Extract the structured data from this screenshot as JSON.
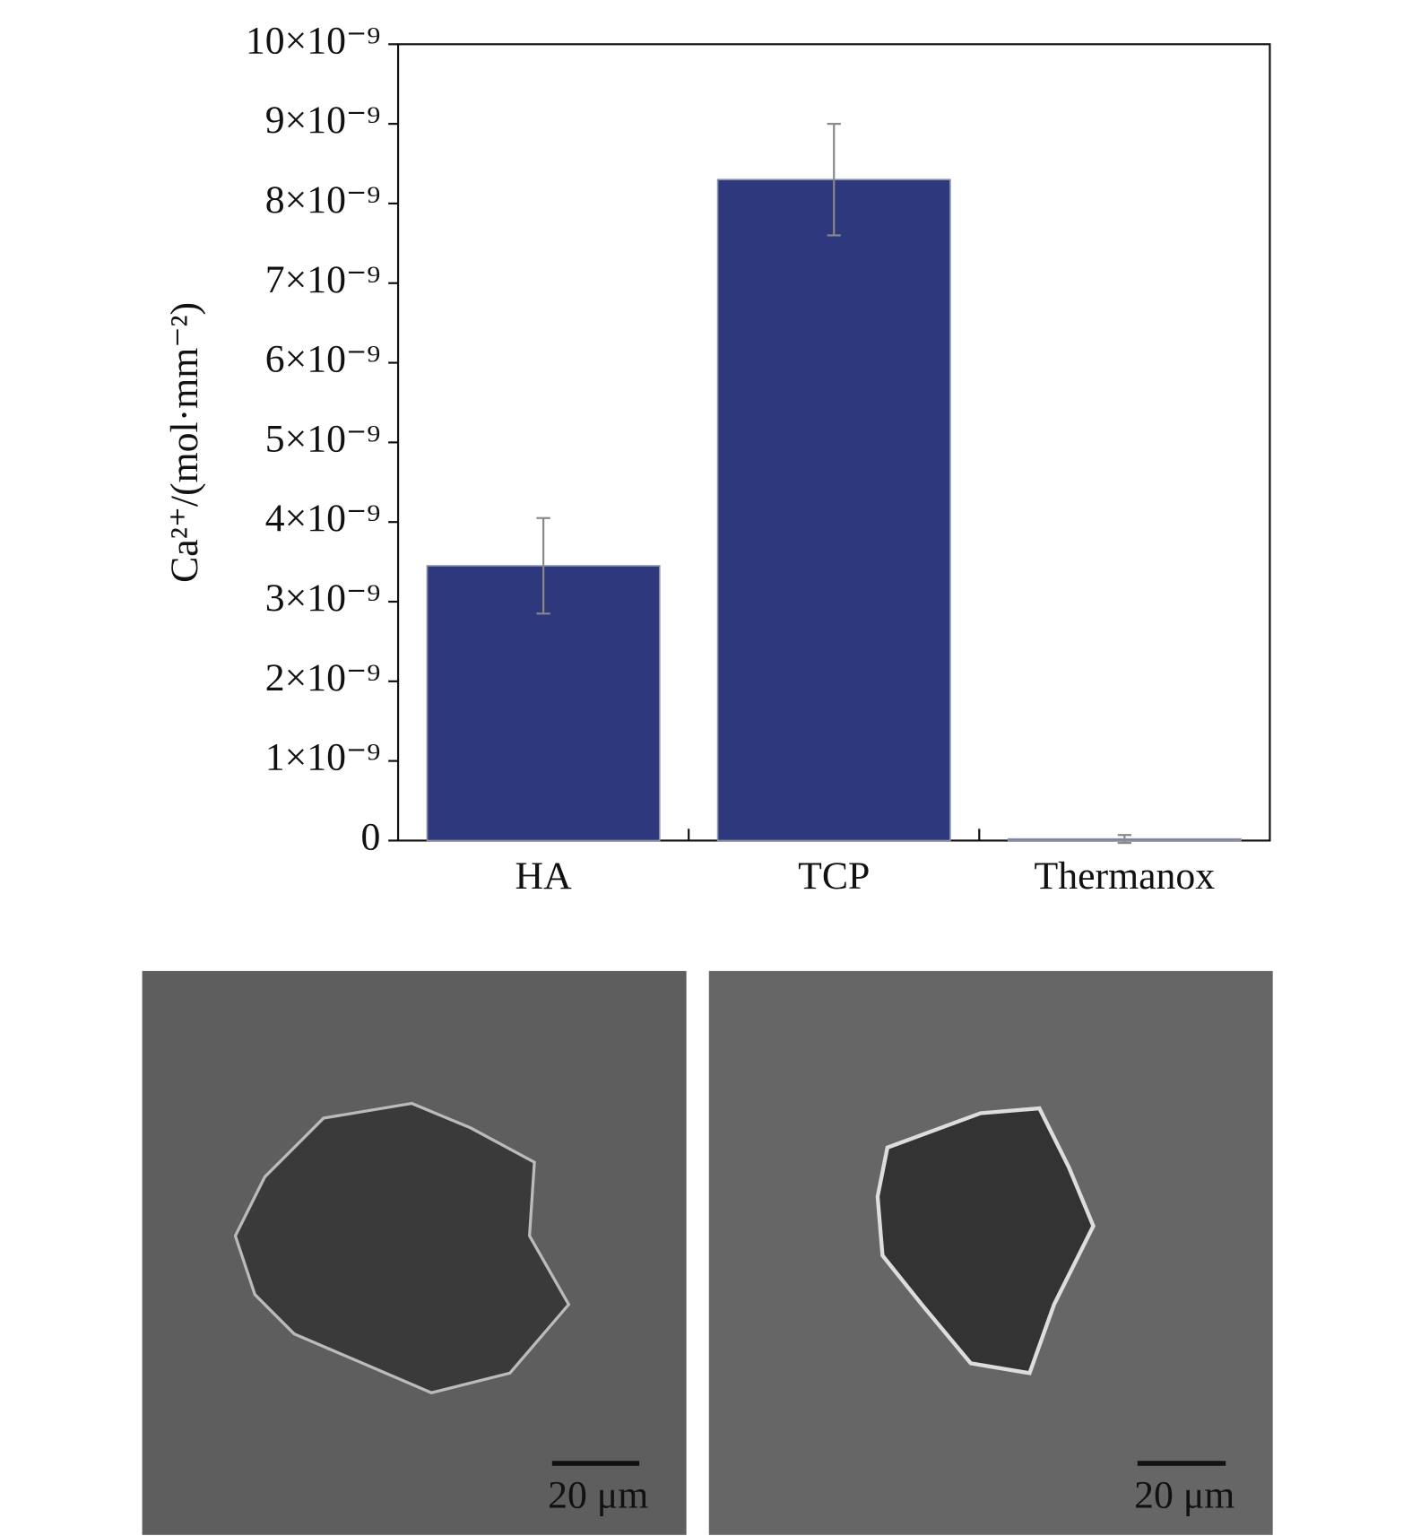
{
  "chart_data": {
    "type": "bar",
    "ylabel": "Ca²⁺/(mol·mm⁻²)",
    "categories": [
      "HA",
      "TCP",
      "Thermanox"
    ],
    "values": [
      3.45e-09,
      8.3e-09,
      2e-11
    ],
    "errors": [
      6e-10,
      7e-10,
      5e-11
    ],
    "color": "#2e387c",
    "ylim": [
      0,
      1e-08
    ],
    "yticks": [
      0,
      {
        "value": 1e-09,
        "label": "1×10⁻⁹"
      },
      {
        "value": 2e-09,
        "label": "2×10⁻⁹"
      },
      {
        "value": 3e-09,
        "label": "3×10⁻⁹"
      },
      {
        "value": 4e-09,
        "label": "4×10⁻⁹"
      },
      {
        "value": 5e-09,
        "label": "5×10⁻⁹"
      },
      {
        "value": 6e-09,
        "label": "6×10⁻⁹"
      },
      {
        "value": 7e-09,
        "label": "7×10⁻⁹"
      },
      {
        "value": 8e-09,
        "label": "8×10⁻⁹"
      },
      {
        "value": 9e-09,
        "label": "9×10⁻⁹"
      },
      {
        "value": 1e-08,
        "label": "10×10⁻⁹"
      }
    ],
    "grid": false
  },
  "micrographs": [
    {
      "scale_label": "20 μm"
    },
    {
      "scale_label": "20 μm"
    }
  ]
}
